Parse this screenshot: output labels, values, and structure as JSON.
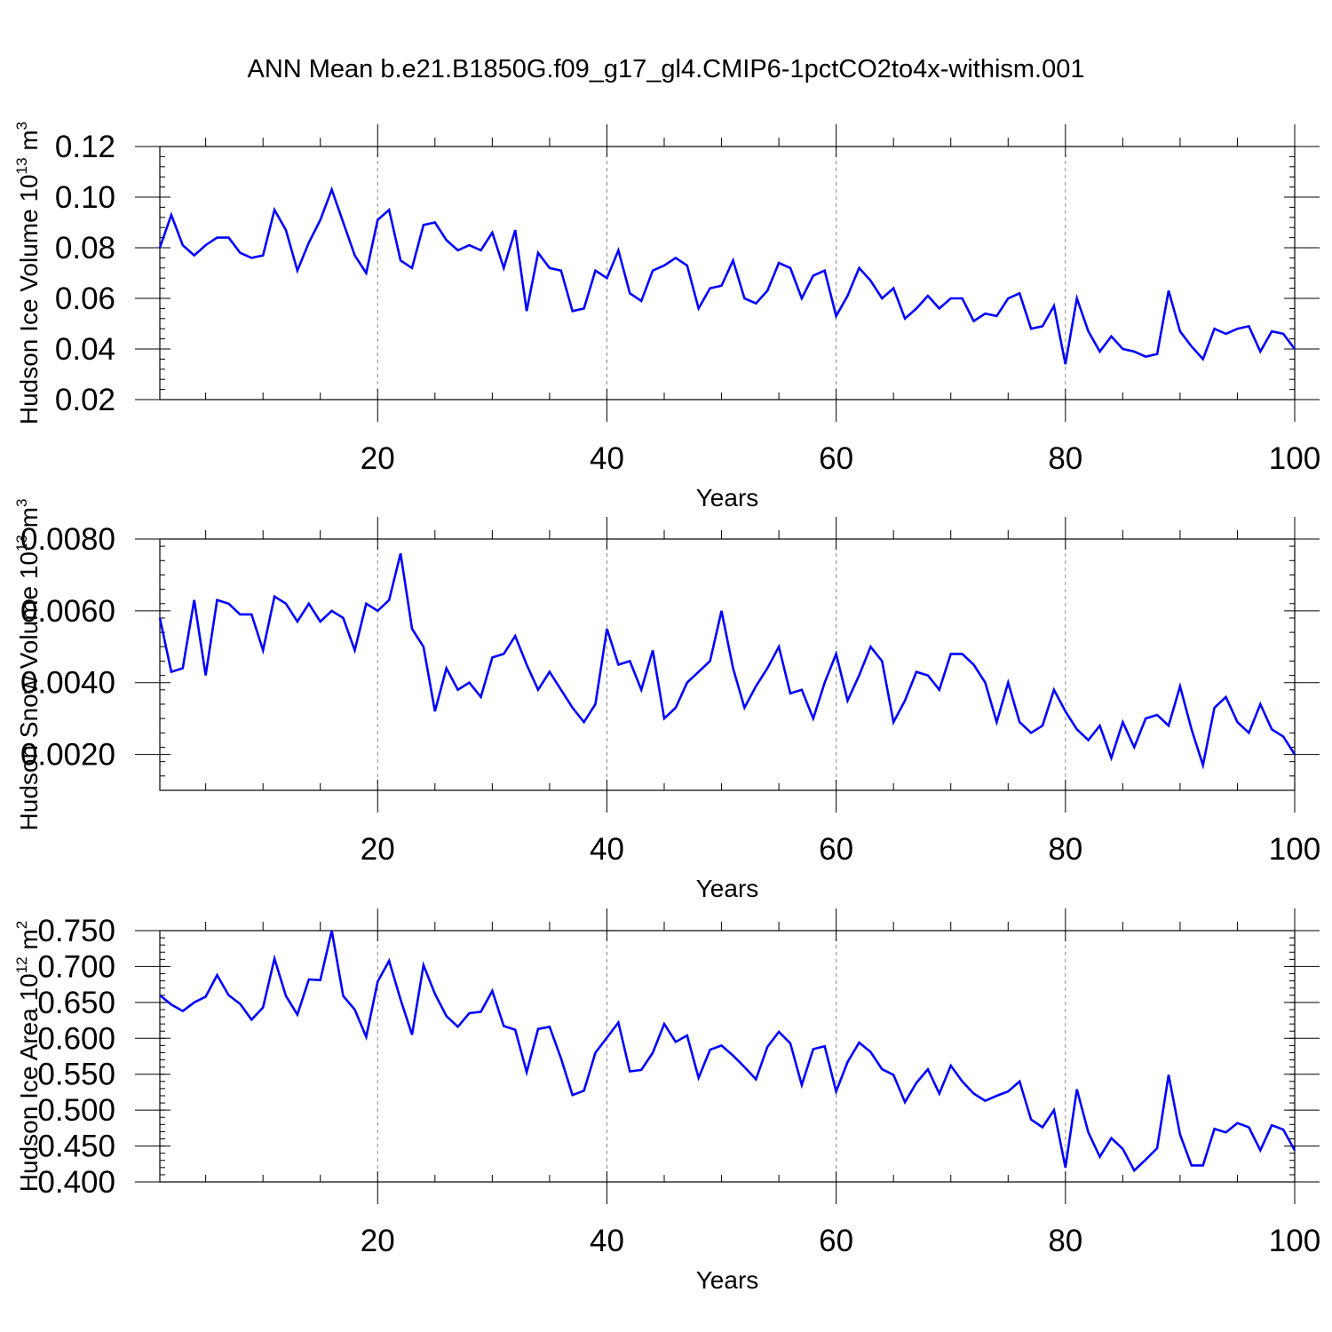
{
  "title": "ANN Mean b.e21.B1850G.f09_g17_gl4.CMIP6-1pctCO2to4x-withism.001",
  "colors": {
    "line": "#0000ff",
    "axis": "#000000",
    "grid": "#888888"
  },
  "chart_data": [
    {
      "type": "line",
      "xlabel": "Years",
      "ylabel_text": "Hudson Ice Volume 10",
      "ylabel_exp": "13",
      "ylabel_unit": "m",
      "ylabel_unit_exp": "3",
      "xlim": [
        1,
        100
      ],
      "ylim": [
        0.02,
        0.12
      ],
      "xticks": [
        20,
        40,
        60,
        80,
        100
      ],
      "xtick_labels": [
        "20",
        "40",
        "60",
        "80",
        "100"
      ],
      "yticks": [
        0.02,
        0.04,
        0.06,
        0.08,
        0.1,
        0.12
      ],
      "ytick_labels": [
        "0.02",
        "0.04",
        "0.06",
        "0.08",
        "0.10",
        "0.12"
      ],
      "grid": "dashed vertical at major x ticks",
      "x": [
        1,
        2,
        3,
        4,
        5,
        6,
        7,
        8,
        9,
        10,
        11,
        12,
        13,
        14,
        15,
        16,
        17,
        18,
        19,
        20,
        21,
        22,
        23,
        24,
        25,
        26,
        27,
        28,
        29,
        30,
        31,
        32,
        33,
        34,
        35,
        36,
        37,
        38,
        39,
        40,
        41,
        42,
        43,
        44,
        45,
        46,
        47,
        48,
        49,
        50,
        51,
        52,
        53,
        54,
        55,
        56,
        57,
        58,
        59,
        60,
        61,
        62,
        63,
        64,
        65,
        66,
        67,
        68,
        69,
        70,
        71,
        72,
        73,
        74,
        75,
        76,
        77,
        78,
        79,
        80,
        81,
        82,
        83,
        84,
        85,
        86,
        87,
        88,
        89,
        90,
        91,
        92,
        93,
        94,
        95,
        96,
        97,
        98,
        99,
        100
      ],
      "series": [
        {
          "values": [
            0.08,
            0.093,
            0.081,
            0.077,
            0.081,
            0.084,
            0.084,
            0.078,
            0.076,
            0.077,
            0.095,
            0.087,
            0.071,
            0.082,
            0.091,
            0.103,
            0.09,
            0.077,
            0.07,
            0.091,
            0.095,
            0.075,
            0.072,
            0.089,
            0.09,
            0.083,
            0.079,
            0.081,
            0.079,
            0.086,
            0.072,
            0.087,
            0.055,
            0.078,
            0.072,
            0.071,
            0.055,
            0.056,
            0.071,
            0.068,
            0.079,
            0.062,
            0.059,
            0.071,
            0.073,
            0.076,
            0.073,
            0.056,
            0.064,
            0.065,
            0.075,
            0.06,
            0.058,
            0.063,
            0.074,
            0.072,
            0.06,
            0.069,
            0.071,
            0.053,
            0.061,
            0.072,
            0.067,
            0.06,
            0.064,
            0.052,
            0.056,
            0.061,
            0.056,
            0.06,
            0.06,
            0.051,
            0.054,
            0.053,
            0.06,
            0.062,
            0.048,
            0.049,
            0.057,
            0.034,
            0.06,
            0.047,
            0.039,
            0.045,
            0.04,
            0.039,
            0.037,
            0.038,
            0.063,
            0.047,
            0.041,
            0.036,
            0.048,
            0.046,
            0.048,
            0.049,
            0.039,
            0.047,
            0.046,
            0.04
          ]
        }
      ]
    },
    {
      "type": "line",
      "xlabel": "Years",
      "ylabel_text": "Hudson Snow Volume 10",
      "ylabel_exp": "13",
      "ylabel_unit": "m",
      "ylabel_unit_exp": "3",
      "xlim": [
        1,
        100
      ],
      "ylim": [
        0.001,
        0.008
      ],
      "xticks": [
        20,
        40,
        60,
        80,
        100
      ],
      "xtick_labels": [
        "20",
        "40",
        "60",
        "80",
        "100"
      ],
      "yticks": [
        0.002,
        0.004,
        0.006,
        0.008
      ],
      "ytick_labels": [
        "0.0020",
        "0.0040",
        "0.0060",
        "0.0080"
      ],
      "grid": "dashed vertical at major x ticks",
      "x": [
        1,
        2,
        3,
        4,
        5,
        6,
        7,
        8,
        9,
        10,
        11,
        12,
        13,
        14,
        15,
        16,
        17,
        18,
        19,
        20,
        21,
        22,
        23,
        24,
        25,
        26,
        27,
        28,
        29,
        30,
        31,
        32,
        33,
        34,
        35,
        36,
        37,
        38,
        39,
        40,
        41,
        42,
        43,
        44,
        45,
        46,
        47,
        48,
        49,
        50,
        51,
        52,
        53,
        54,
        55,
        56,
        57,
        58,
        59,
        60,
        61,
        62,
        63,
        64,
        65,
        66,
        67,
        68,
        69,
        70,
        71,
        72,
        73,
        74,
        75,
        76,
        77,
        78,
        79,
        80,
        81,
        82,
        83,
        84,
        85,
        86,
        87,
        88,
        89,
        90,
        91,
        92,
        93,
        94,
        95,
        96,
        97,
        98,
        99,
        100
      ],
      "series": [
        {
          "values": [
            0.0058,
            0.0043,
            0.0044,
            0.0063,
            0.0042,
            0.0063,
            0.0062,
            0.0059,
            0.0059,
            0.0049,
            0.0064,
            0.0062,
            0.0057,
            0.0062,
            0.0057,
            0.006,
            0.0058,
            0.0049,
            0.0062,
            0.006,
            0.0063,
            0.0076,
            0.0055,
            0.005,
            0.0032,
            0.0044,
            0.0038,
            0.004,
            0.0036,
            0.0047,
            0.0048,
            0.0053,
            0.0045,
            0.0038,
            0.0043,
            0.0038,
            0.0033,
            0.0029,
            0.0034,
            0.0055,
            0.0045,
            0.0046,
            0.0038,
            0.0049,
            0.003,
            0.0033,
            0.004,
            0.0043,
            0.0046,
            0.006,
            0.0044,
            0.0033,
            0.0039,
            0.0044,
            0.005,
            0.0037,
            0.0038,
            0.003,
            0.004,
            0.0048,
            0.0035,
            0.0042,
            0.005,
            0.0046,
            0.0029,
            0.0035,
            0.0043,
            0.0042,
            0.0038,
            0.0048,
            0.0048,
            0.0045,
            0.004,
            0.0029,
            0.004,
            0.0029,
            0.0026,
            0.0028,
            0.0038,
            0.0032,
            0.0027,
            0.0024,
            0.0028,
            0.0019,
            0.0029,
            0.0022,
            0.003,
            0.0031,
            0.0028,
            0.0039,
            0.0027,
            0.0017,
            0.0033,
            0.0036,
            0.0029,
            0.0026,
            0.0034,
            0.0027,
            0.0025,
            0.002
          ]
        }
      ]
    },
    {
      "type": "line",
      "xlabel": "Years",
      "ylabel_text": "Hudson Ice Area 10",
      "ylabel_exp": "12",
      "ylabel_unit": "m",
      "ylabel_unit_exp": "2",
      "xlim": [
        1,
        100
      ],
      "ylim": [
        0.4,
        0.75
      ],
      "xticks": [
        20,
        40,
        60,
        80,
        100
      ],
      "xtick_labels": [
        "20",
        "40",
        "60",
        "80",
        "100"
      ],
      "yticks": [
        0.4,
        0.45,
        0.5,
        0.55,
        0.6,
        0.65,
        0.7,
        0.75
      ],
      "ytick_labels": [
        "0.400",
        "0.450",
        "0.500",
        "0.550",
        "0.600",
        "0.650",
        "0.700",
        "0.750"
      ],
      "grid": "dashed vertical at major x ticks",
      "x": [
        1,
        2,
        3,
        4,
        5,
        6,
        7,
        8,
        9,
        10,
        11,
        12,
        13,
        14,
        15,
        16,
        17,
        18,
        19,
        20,
        21,
        22,
        23,
        24,
        25,
        26,
        27,
        28,
        29,
        30,
        31,
        32,
        33,
        34,
        35,
        36,
        37,
        38,
        39,
        40,
        41,
        42,
        43,
        44,
        45,
        46,
        47,
        48,
        49,
        50,
        51,
        52,
        53,
        54,
        55,
        56,
        57,
        58,
        59,
        60,
        61,
        62,
        63,
        64,
        65,
        66,
        67,
        68,
        69,
        70,
        71,
        72,
        73,
        74,
        75,
        76,
        77,
        78,
        79,
        80,
        81,
        82,
        83,
        84,
        85,
        86,
        87,
        88,
        89,
        90,
        91,
        92,
        93,
        94,
        95,
        96,
        97,
        98,
        99,
        100
      ],
      "series": [
        {
          "values": [
            0.66,
            0.647,
            0.638,
            0.65,
            0.658,
            0.688,
            0.66,
            0.648,
            0.626,
            0.643,
            0.711,
            0.659,
            0.633,
            0.682,
            0.681,
            0.75,
            0.659,
            0.64,
            0.602,
            0.679,
            0.708,
            0.654,
            0.605,
            0.702,
            0.662,
            0.631,
            0.616,
            0.635,
            0.637,
            0.666,
            0.617,
            0.612,
            0.553,
            0.613,
            0.616,
            0.572,
            0.521,
            0.527,
            0.58,
            0.601,
            0.622,
            0.554,
            0.556,
            0.58,
            0.62,
            0.595,
            0.604,
            0.545,
            0.584,
            0.59,
            0.576,
            0.56,
            0.543,
            0.588,
            0.609,
            0.593,
            0.535,
            0.585,
            0.589,
            0.526,
            0.567,
            0.594,
            0.581,
            0.557,
            0.549,
            0.511,
            0.538,
            0.557,
            0.523,
            0.562,
            0.54,
            0.523,
            0.513,
            0.52,
            0.526,
            0.54,
            0.487,
            0.476,
            0.5,
            0.42,
            0.529,
            0.469,
            0.435,
            0.461,
            0.446,
            0.416,
            0.431,
            0.447,
            0.549,
            0.466,
            0.423,
            0.423,
            0.474,
            0.469,
            0.482,
            0.476,
            0.444,
            0.479,
            0.473,
            0.444
          ]
        }
      ]
    }
  ]
}
